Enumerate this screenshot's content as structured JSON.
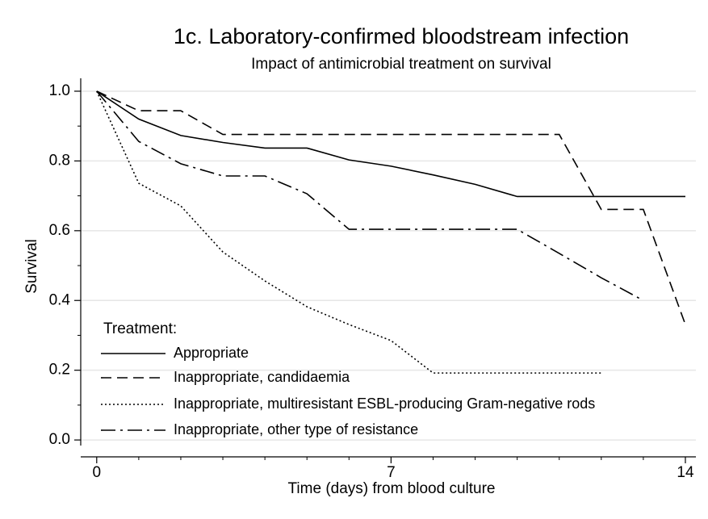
{
  "chart_data": {
    "type": "line",
    "title": "1c.  Laboratory-confirmed bloodstream infection",
    "subtitle": "Impact of antimicrobial treatment on survival",
    "x_label": "Time (days) from blood culture",
    "y_label": "Survival",
    "x": [
      0,
      1,
      2,
      3,
      4,
      5,
      6,
      7,
      8,
      9,
      10,
      11,
      12,
      13,
      14
    ],
    "series": [
      {
        "name": "Appropriate",
        "color": "#000000",
        "line_style": "solid",
        "values": [
          1.0,
          0.92,
          0.873,
          0.853,
          0.837,
          0.837,
          0.803,
          0.785,
          0.76,
          0.733,
          0.698,
          0.698,
          0.698,
          0.698,
          0.698
        ]
      },
      {
        "name": "Inappropriate, candidaemia",
        "color": "#000000",
        "line_style": "dashed",
        "values": [
          1.0,
          0.944,
          0.944,
          0.876,
          0.876,
          0.876,
          0.876,
          0.876,
          0.876,
          0.876,
          0.876,
          0.876,
          0.661,
          0.661,
          0.331
        ]
      },
      {
        "name": "Inappropriate, multiresistant ESBL-producing Gram-negative rods",
        "color": "#000000",
        "line_style": "dotted",
        "values": [
          1.0,
          0.736,
          0.671,
          0.539,
          0.456,
          0.382,
          0.331,
          0.285,
          0.192,
          0.192,
          0.192,
          0.192,
          0.192,
          null,
          null
        ]
      },
      {
        "name": "Inappropriate, other type of resistance",
        "color": "#000000",
        "line_style": "dashdot",
        "values": [
          1.0,
          0.856,
          0.792,
          0.757,
          0.757,
          0.706,
          0.604,
          0.604,
          0.604,
          0.604,
          0.604,
          0.535,
          0.465,
          0.4,
          null
        ]
      }
    ],
    "legend_title": "Treatment:",
    "legend_position": "lower left",
    "xlim": [
      -0.38,
      14.25
    ],
    "ylim": [
      -0.016,
      1.037
    ],
    "xticks": [
      0,
      7,
      14
    ],
    "x_minor_ticks": [
      1,
      2,
      3,
      4,
      5,
      6,
      8,
      9,
      10,
      11,
      12,
      13
    ],
    "yticks": [
      {
        "value": 0,
        "label": "0.0"
      },
      0.2,
      0.4,
      0.6,
      0.8,
      {
        "value": 1,
        "label": "1.0"
      }
    ],
    "y_minor_ticks": [
      0.1,
      0.3,
      0.5,
      0.7,
      0.9
    ],
    "grid": true
  }
}
